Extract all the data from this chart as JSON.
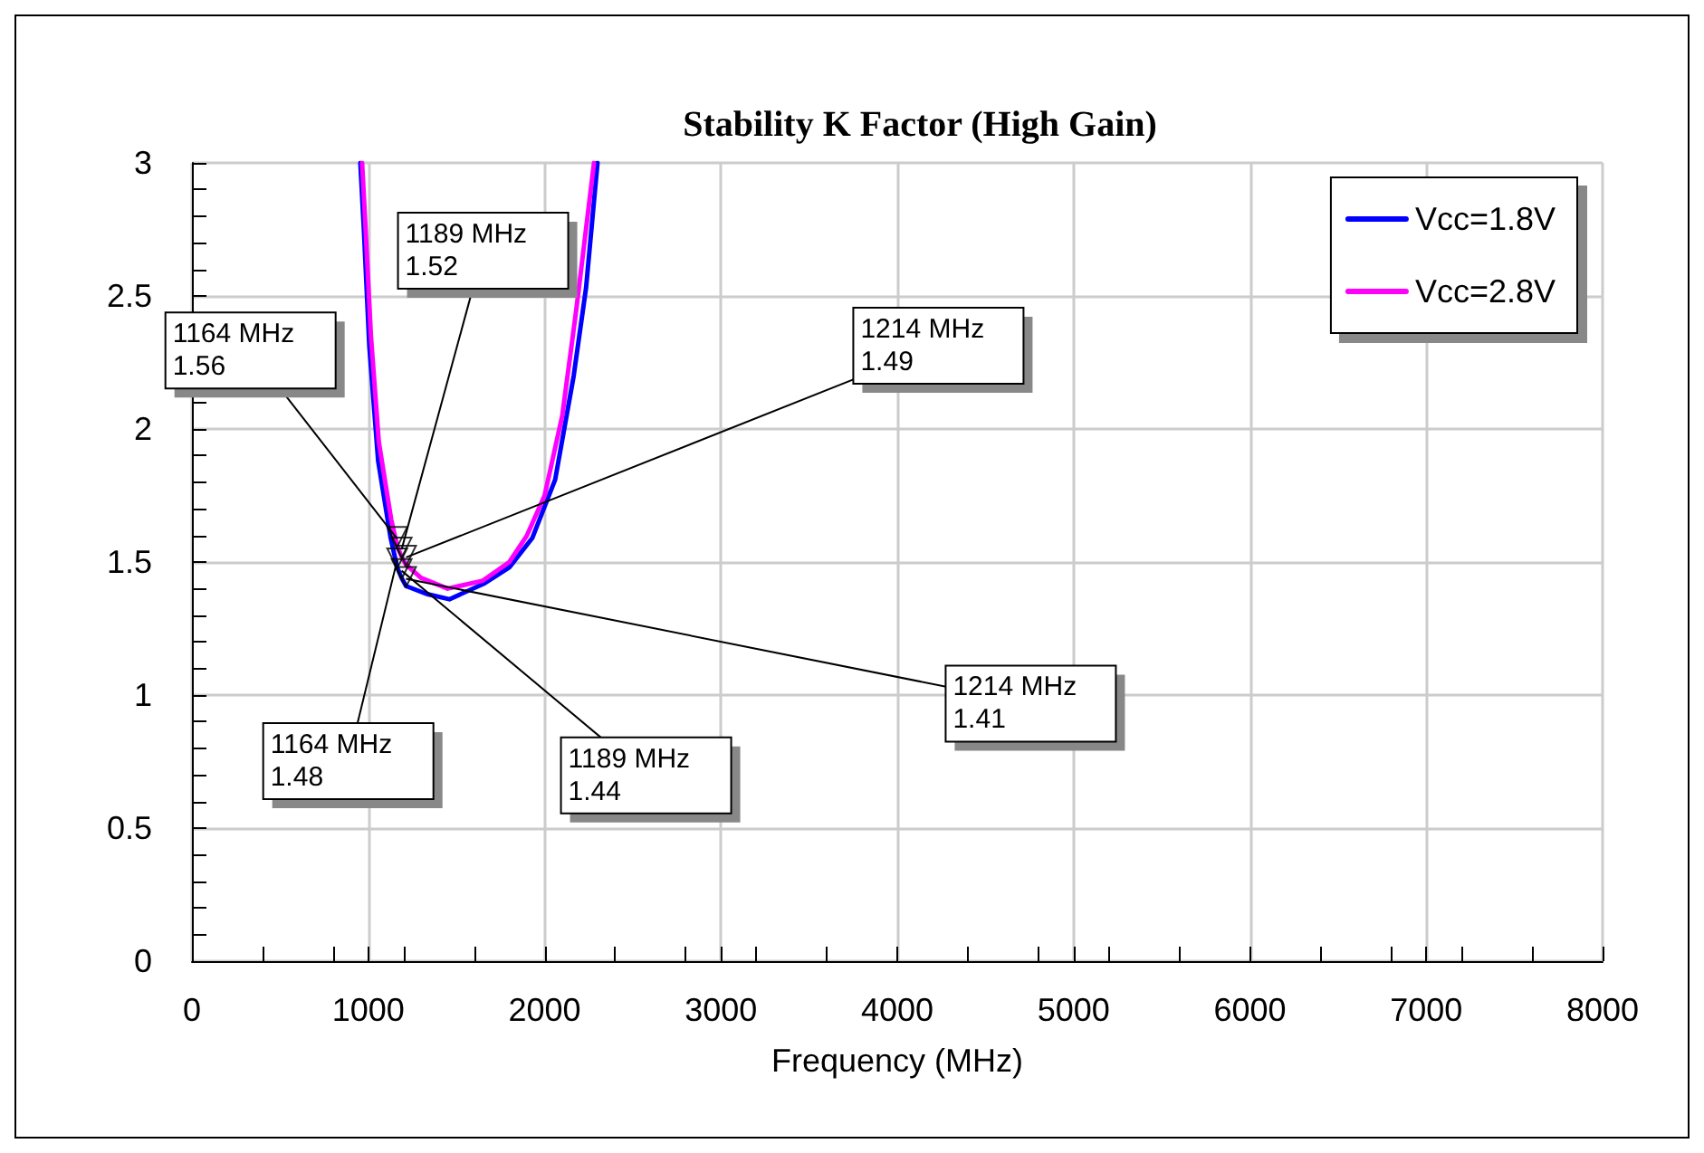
{
  "chart_data": {
    "type": "line",
    "title": "Stability K Factor (High Gain)",
    "xlabel": "Frequency (MHz)",
    "series": [
      {
        "name": "Vcc=1.8V",
        "color": "#0000ff",
        "x": [
          955,
          975,
          1006,
          1056,
          1127,
          1164,
          1189,
          1214,
          1330,
          1460,
          1660,
          1800,
          1930,
          2060,
          2165,
          2235,
          2300
        ],
        "values": [
          3.0,
          2.75,
          2.31,
          1.88,
          1.59,
          1.48,
          1.44,
          1.41,
          1.38,
          1.36,
          1.42,
          1.48,
          1.59,
          1.81,
          2.2,
          2.53,
          3.0
        ]
      },
      {
        "name": "Vcc=2.8V",
        "color": "#ff00ff",
        "x": [
          965,
          985,
          1015,
          1060,
          1130,
          1164,
          1189,
          1214,
          1300,
          1450,
          1650,
          1800,
          1900,
          2000,
          2100,
          2180,
          2280
        ],
        "values": [
          3.0,
          2.75,
          2.35,
          1.95,
          1.66,
          1.56,
          1.52,
          1.49,
          1.44,
          1.4,
          1.43,
          1.5,
          1.6,
          1.75,
          2.05,
          2.45,
          3.0
        ]
      }
    ],
    "annotations": [
      {
        "text": "1164 MHz\n1.56",
        "x": 1164,
        "y": 1.56
      },
      {
        "text": "1189 MHz\n1.52",
        "x": 1189,
        "y": 1.52
      },
      {
        "text": "1214 MHz\n1.49",
        "x": 1214,
        "y": 1.49
      },
      {
        "text": "1164 MHz\n1.48",
        "x": 1164,
        "y": 1.48
      },
      {
        "text": "1189 MHz\n1.44",
        "x": 1189,
        "y": 1.44
      },
      {
        "text": "1214 MHz\n1.41",
        "x": 1214,
        "y": 1.41
      }
    ],
    "xlim": [
      0,
      8000
    ],
    "xticks": [
      0,
      1000,
      2000,
      3000,
      4000,
      5000,
      6000,
      7000,
      8000
    ],
    "ylim": [
      0,
      3
    ],
    "yticks": [
      0,
      0.5,
      1,
      1.5,
      2,
      2.5,
      3
    ],
    "grid": true,
    "legend": "top right",
    "marker": "none",
    "line_style": "solid"
  }
}
